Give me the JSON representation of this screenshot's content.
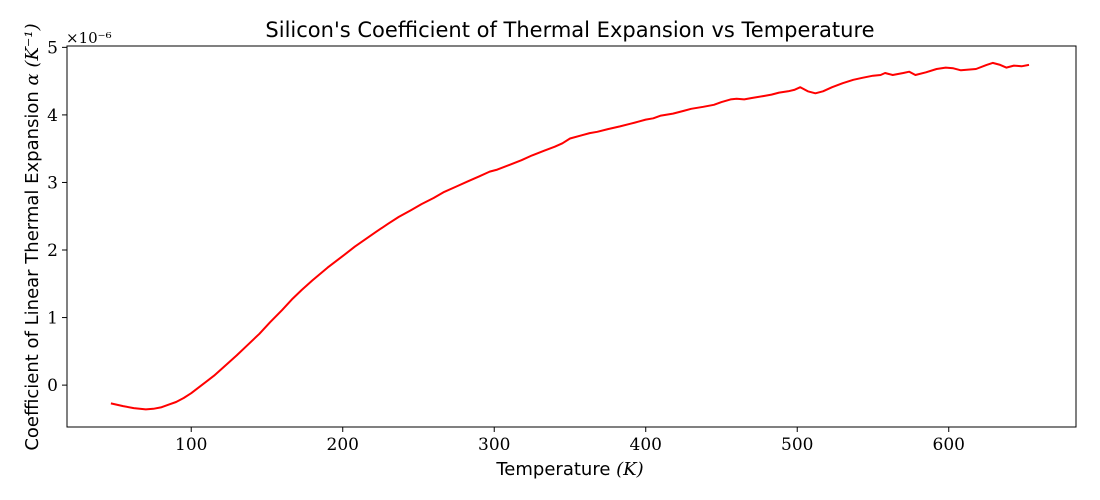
{
  "chart_data": {
    "type": "line",
    "title": "Silicon's Coefficient of Thermal Expansion vs Temperature",
    "xlabel_text": "Temperature ",
    "xlabel_unit": "(K)",
    "ylabel_text": "Coefficient of Linear Thermal Expansion ",
    "ylabel_unit": "α (K⁻¹)",
    "y_offset_text": "×10⁻⁶",
    "xlim": [
      18,
      684
    ],
    "ylim": [
      -0.62,
      5.02
    ],
    "xticks": [
      100,
      200,
      300,
      400,
      500,
      600
    ],
    "xtick_labels": [
      "100",
      "200",
      "300",
      "400",
      "500",
      "600"
    ],
    "yticks": [
      0,
      1,
      2,
      3,
      4,
      5
    ],
    "ytick_labels": [
      "0",
      "1",
      "2",
      "3",
      "4",
      "5"
    ],
    "grid": false,
    "legend": "none",
    "series": [
      {
        "color": "#ff0000",
        "x": [
          47,
          55,
          62,
          70,
          75,
          80,
          85,
          90,
          95,
          100,
          107,
          115,
          122,
          130,
          137,
          145,
          152,
          160,
          167,
          173,
          180,
          190,
          200,
          208,
          215,
          222,
          230,
          237,
          245,
          252,
          260,
          267,
          275,
          283,
          290,
          297,
          302,
          310,
          318,
          325,
          333,
          340,
          345,
          350,
          358,
          363,
          368,
          375,
          383,
          390,
          395,
          400,
          405,
          410,
          418,
          425,
          430,
          438,
          445,
          450,
          456,
          460,
          465,
          470,
          478,
          483,
          488,
          494,
          498,
          502,
          507,
          512,
          517,
          523,
          530,
          537,
          543,
          550,
          555,
          558,
          563,
          570,
          574,
          578,
          585,
          592,
          598,
          603,
          608,
          613,
          618,
          625,
          629,
          634,
          638,
          643,
          648,
          653
        ],
        "y": [
          -0.27,
          -0.31,
          -0.34,
          -0.36,
          -0.35,
          -0.33,
          -0.29,
          -0.25,
          -0.19,
          -0.12,
          0.0,
          0.14,
          0.28,
          0.44,
          0.59,
          0.76,
          0.93,
          1.11,
          1.28,
          1.41,
          1.55,
          1.74,
          1.91,
          2.05,
          2.16,
          2.27,
          2.39,
          2.49,
          2.59,
          2.68,
          2.77,
          2.86,
          2.94,
          3.02,
          3.09,
          3.16,
          3.19,
          3.26,
          3.33,
          3.4,
          3.47,
          3.53,
          3.58,
          3.65,
          3.7,
          3.73,
          3.75,
          3.79,
          3.83,
          3.87,
          3.9,
          3.93,
          3.95,
          3.99,
          4.02,
          4.06,
          4.09,
          4.12,
          4.15,
          4.19,
          4.23,
          4.24,
          4.23,
          4.25,
          4.28,
          4.3,
          4.33,
          4.35,
          4.37,
          4.41,
          4.35,
          4.32,
          4.35,
          4.41,
          4.47,
          4.52,
          4.55,
          4.58,
          4.59,
          4.62,
          4.59,
          4.62,
          4.64,
          4.59,
          4.63,
          4.68,
          4.7,
          4.69,
          4.66,
          4.67,
          4.68,
          4.74,
          4.77,
          4.74,
          4.7,
          4.73,
          4.72,
          4.74
        ]
      }
    ]
  }
}
